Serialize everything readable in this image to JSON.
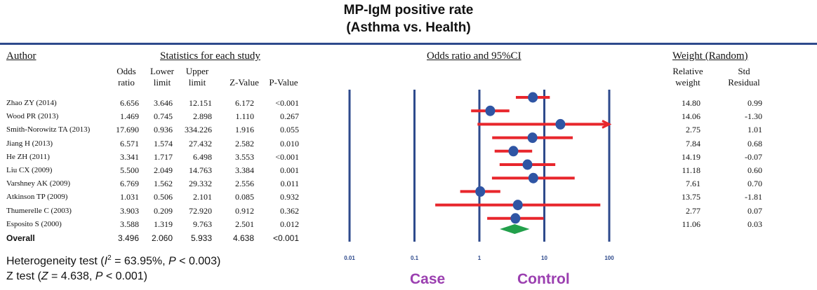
{
  "title_line1": "MP-IgM positive rate",
  "title_line2": "(Asthma vs. Health)",
  "headers": {
    "author": "Author",
    "stats": "Statistics for each study",
    "or_ci": "Odds ratio and 95%CI",
    "weight": "Weight (Random)"
  },
  "columns": {
    "odds1": "Odds",
    "odds2": "ratio",
    "lower1": "Lower",
    "lower2": "limit",
    "upper1": "Upper",
    "upper2": "limit",
    "z": "Z-Value",
    "p": "P-Value",
    "rel1": "Relative",
    "rel2": "weight",
    "std1": "Std",
    "std2": "Residual"
  },
  "rows": [
    {
      "author": "Zhao ZY (2014)",
      "or": "6.656",
      "lower": "3.646",
      "upper": "12.151",
      "z": "6.172",
      "p": "<0.001",
      "weight": "14.80",
      "resid": "0.99"
    },
    {
      "author": "Wood PR  (2013)",
      "or": "1.469",
      "lower": "0.745",
      "upper": "2.898",
      "z": "1.110",
      "p": "0.267",
      "weight": "14.06",
      "resid": "-1.30"
    },
    {
      "author": "Smith-Norowitz TA (2013)",
      "or": "17.690",
      "lower": "0.936",
      "upper": "334.226",
      "z": "1.916",
      "p": "0.055",
      "weight": "2.75",
      "resid": "1.01"
    },
    {
      "author": "Jiang H (2013)",
      "or": "6.571",
      "lower": "1.574",
      "upper": "27.432",
      "z": "2.582",
      "p": "0.010",
      "weight": "7.84",
      "resid": "0.68"
    },
    {
      "author": "He ZH (2011)",
      "or": "3.341",
      "lower": "1.717",
      "upper": "6.498",
      "z": "3.553",
      "p": "<0.001",
      "weight": "14.19",
      "resid": "-0.07"
    },
    {
      "author": "Liu CX (2009)",
      "or": "5.500",
      "lower": "2.049",
      "upper": "14.763",
      "z": "3.384",
      "p": "0.001",
      "weight": "11.18",
      "resid": "0.60"
    },
    {
      "author": "Varshney AK (2009)",
      "or": "6.769",
      "lower": "1.562",
      "upper": "29.332",
      "z": "2.556",
      "p": "0.011",
      "weight": "7.61",
      "resid": "0.70"
    },
    {
      "author": "Atkinson TP (2009)",
      "or": "1.031",
      "lower": "0.506",
      "upper": "2.101",
      "z": "0.085",
      "p": "0.932",
      "weight": "13.75",
      "resid": "-1.81"
    },
    {
      "author": "Thumerelle C (2003)",
      "or": "3.903",
      "lower": "0.209",
      "upper": "72.920",
      "z": "0.912",
      "p": "0.362",
      "weight": "2.77",
      "resid": "0.07"
    },
    {
      "author": "Esposito S (2000)",
      "or": "3.588",
      "lower": "1.319",
      "upper": "9.763",
      "z": "2.501",
      "p": "0.012",
      "weight": "11.06",
      "resid": "0.03"
    }
  ],
  "overall": {
    "author": "Overall",
    "or": "3.496",
    "lower": "2.060",
    "upper": "5.933",
    "z": "4.638",
    "p": "<0.001"
  },
  "footer": {
    "het_prefix": "Heterogeneity test (",
    "het_i": "I",
    "het_sup": "2",
    "het_mid": " = 63.95%, ",
    "het_p": "P",
    "het_end": " < 0.003)",
    "z_prefix": "Z test (",
    "z_z": "Z",
    "z_mid": " = 4.638, ",
    "z_p": "P",
    "z_end": " < 0.001)"
  },
  "case_label": "Case",
  "control_label": "Control",
  "colors": {
    "ci_line": "#e8262c",
    "point": "#2f55a4",
    "diamond": "#22a04b",
    "axis_line": "#2e4a8c"
  },
  "chart_data": {
    "type": "forest",
    "scale": "log",
    "xlim": [
      0.01,
      100
    ],
    "x_ticks": [
      "0.01",
      "0.1",
      "1",
      "10",
      "100"
    ],
    "x_tick_values": [
      0.01,
      0.1,
      1,
      10,
      100
    ],
    "studies": [
      {
        "name": "Zhao ZY (2014)",
        "or": 6.656,
        "lower": 3.646,
        "upper": 12.151
      },
      {
        "name": "Wood PR  (2013)",
        "or": 1.469,
        "lower": 0.745,
        "upper": 2.898
      },
      {
        "name": "Smith-Norowitz TA (2013)",
        "or": 17.69,
        "lower": 0.936,
        "upper": 334.226
      },
      {
        "name": "Jiang H (2013)",
        "or": 6.571,
        "lower": 1.574,
        "upper": 27.432
      },
      {
        "name": "He ZH (2011)",
        "or": 3.341,
        "lower": 1.717,
        "upper": 6.498
      },
      {
        "name": "Liu CX (2009)",
        "or": 5.5,
        "lower": 2.049,
        "upper": 14.763
      },
      {
        "name": "Varshney AK (2009)",
        "or": 6.769,
        "lower": 1.562,
        "upper": 29.332
      },
      {
        "name": "Atkinson TP (2009)",
        "or": 1.031,
        "lower": 0.506,
        "upper": 2.101
      },
      {
        "name": "Thumerelle C (2003)",
        "or": 3.903,
        "lower": 0.209,
        "upper": 72.92
      },
      {
        "name": "Esposito S (2000)",
        "or": 3.588,
        "lower": 1.319,
        "upper": 9.763
      }
    ],
    "overall": {
      "name": "Overall",
      "or": 3.496,
      "lower": 2.06,
      "upper": 5.933
    }
  }
}
